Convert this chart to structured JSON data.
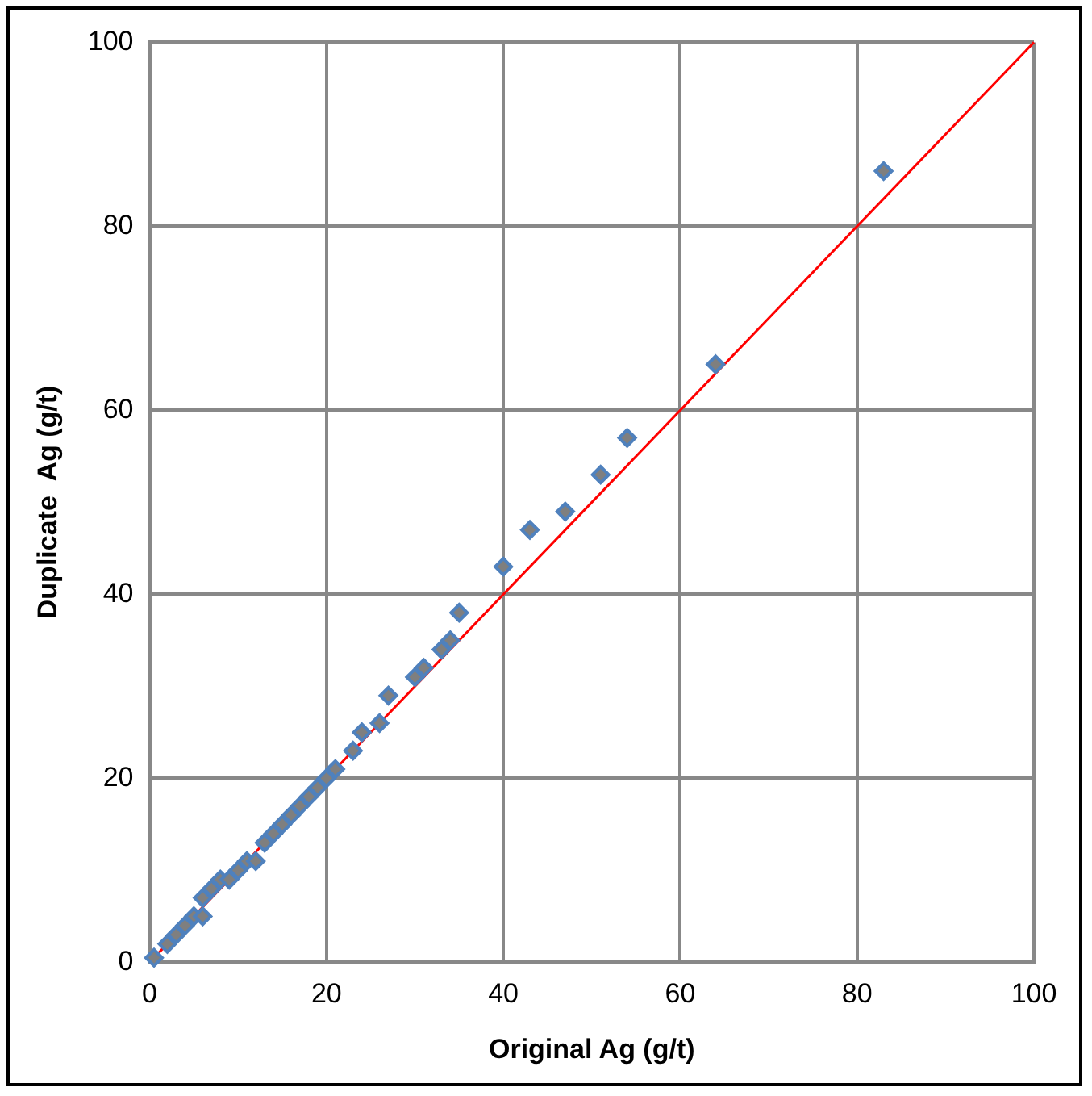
{
  "chart_data": {
    "type": "scatter",
    "xlabel": "Original Ag (g/t)",
    "ylabel": "Duplicate  Ag (g/t)",
    "xlim": [
      0,
      100
    ],
    "ylim": [
      0,
      100
    ],
    "xticks": [
      0,
      20,
      40,
      60,
      80,
      100
    ],
    "yticks": [
      0,
      20,
      40,
      60,
      80,
      100
    ],
    "grid": true,
    "legend": false,
    "marker": "diamond",
    "series": [
      {
        "color": "#4f81bd",
        "x": [
          0.5,
          2,
          3,
          4,
          5,
          6,
          6,
          7,
          8,
          9,
          10,
          11,
          12,
          13,
          14,
          15,
          16,
          17,
          18,
          19,
          20,
          21,
          23,
          24,
          26,
          27,
          30,
          31,
          33,
          34,
          35,
          40,
          43,
          47,
          51,
          54,
          64,
          83
        ],
        "values": [
          0.5,
          2,
          3,
          4,
          5,
          5,
          7,
          8,
          9,
          9,
          10,
          11,
          11,
          13,
          14,
          15,
          16,
          17,
          18,
          19,
          20,
          21,
          23,
          25,
          26,
          29,
          31,
          32,
          34,
          35,
          38,
          43,
          47,
          49,
          53,
          57,
          65,
          86
        ]
      },
      {
        "type": "line",
        "color": "#ff0000",
        "marker": "none",
        "x": [
          0,
          100
        ],
        "values": [
          0,
          100
        ]
      }
    ]
  }
}
